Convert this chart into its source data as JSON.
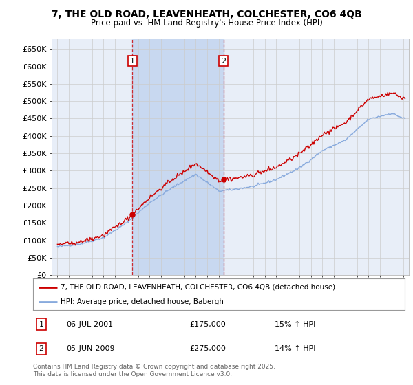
{
  "title": "7, THE OLD ROAD, LEAVENHEATH, COLCHESTER, CO6 4QB",
  "subtitle": "Price paid vs. HM Land Registry's House Price Index (HPI)",
  "legend_line1": "7, THE OLD ROAD, LEAVENHEATH, COLCHESTER, CO6 4QB (detached house)",
  "legend_line2": "HPI: Average price, detached house, Babergh",
  "transaction1_date": 2001.51,
  "transaction1_price": 175000,
  "transaction1_label": "1",
  "transaction2_date": 2009.42,
  "transaction2_price": 275000,
  "transaction2_label": "2",
  "ylim": [
    0,
    680000
  ],
  "xlim": [
    1994.5,
    2025.5
  ],
  "yticks": [
    0,
    50000,
    100000,
    150000,
    200000,
    250000,
    300000,
    350000,
    400000,
    450000,
    500000,
    550000,
    600000,
    650000
  ],
  "ytick_labels": [
    "£0",
    "£50K",
    "£100K",
    "£150K",
    "£200K",
    "£250K",
    "£300K",
    "£350K",
    "£400K",
    "£450K",
    "£500K",
    "£550K",
    "£600K",
    "£650K"
  ],
  "grid_color": "#cccccc",
  "background_color": "#ffffff",
  "plot_bg_color": "#e8eef8",
  "red_line_color": "#cc0000",
  "blue_line_color": "#88aadd",
  "shade_color": "#c8d8f0",
  "footnote_line1": "Contains HM Land Registry data © Crown copyright and database right 2025.",
  "footnote_line2": "This data is licensed under the Open Government Licence v3.0."
}
